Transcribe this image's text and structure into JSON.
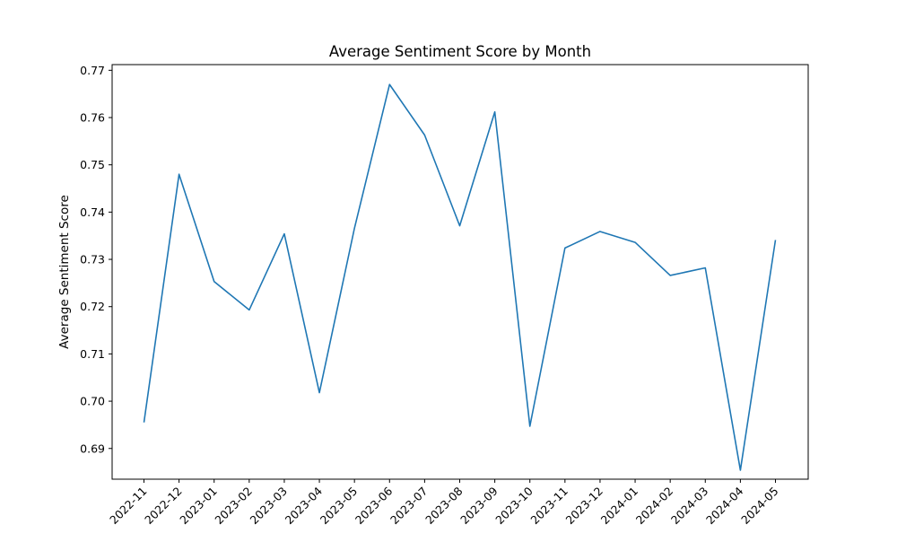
{
  "chart_data": {
    "type": "line",
    "title": "Average Sentiment Score by Month",
    "xlabel": "",
    "ylabel": "Average Sentiment Score",
    "ylim": [
      0.6835,
      0.7712
    ],
    "yticks": [
      "0.69",
      "0.70",
      "0.71",
      "0.72",
      "0.73",
      "0.74",
      "0.75",
      "0.76",
      "0.77"
    ],
    "grid": false,
    "categories": [
      "2022-11",
      "2022-12",
      "2023-01",
      "2023-02",
      "2023-03",
      "2023-04",
      "2023-05",
      "2023-06",
      "2023-07",
      "2023-08",
      "2023-09",
      "2023-10",
      "2023-11",
      "2023-12",
      "2024-01",
      "2024-02",
      "2024-03",
      "2024-04",
      "2024-05"
    ],
    "series": [
      {
        "values": [
          0.6955,
          0.748,
          0.7253,
          0.7193,
          0.7354,
          0.7018,
          0.7366,
          0.767,
          0.7563,
          0.7371,
          0.7612,
          0.6947,
          0.7324,
          0.7359,
          0.7336,
          0.7266,
          0.7282,
          0.6854,
          0.7341
        ],
        "color": "#1f77b4"
      }
    ]
  }
}
